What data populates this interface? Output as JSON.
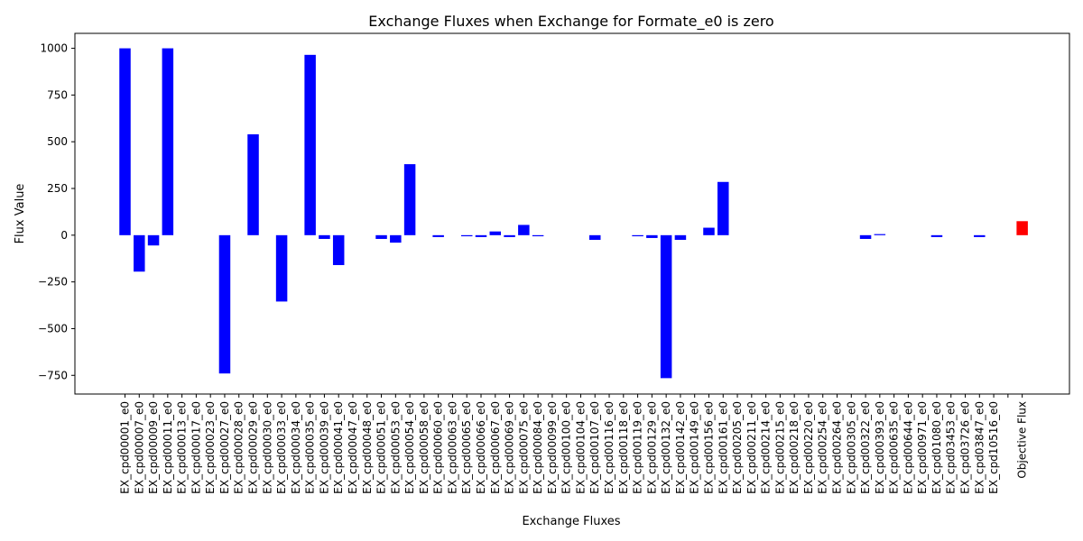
{
  "chart_data": {
    "type": "bar",
    "title": "Exchange Fluxes when Exchange for Formate_e0 is zero",
    "xlabel": "Exchange Fluxes",
    "ylabel": "Flux Value",
    "ylim": [
      -850,
      1080
    ],
    "yticks": [
      -750,
      -500,
      -250,
      0,
      250,
      500,
      750,
      1000
    ],
    "grid": false,
    "categories": [
      "EX_cpd00001_e0",
      "EX_cpd00007_e0",
      "EX_cpd00009_e0",
      "EX_cpd00011_e0",
      "EX_cpd00013_e0",
      "EX_cpd00017_e0",
      "EX_cpd00023_e0",
      "EX_cpd00027_e0",
      "EX_cpd00028_e0",
      "EX_cpd00029_e0",
      "EX_cpd00030_e0",
      "EX_cpd00033_e0",
      "EX_cpd00034_e0",
      "EX_cpd00035_e0",
      "EX_cpd00039_e0",
      "EX_cpd00041_e0",
      "EX_cpd00047_e0",
      "EX_cpd00048_e0",
      "EX_cpd00051_e0",
      "EX_cpd00053_e0",
      "EX_cpd00054_e0",
      "EX_cpd00058_e0",
      "EX_cpd00060_e0",
      "EX_cpd00063_e0",
      "EX_cpd00065_e0",
      "EX_cpd00066_e0",
      "EX_cpd00067_e0",
      "EX_cpd00069_e0",
      "EX_cpd00075_e0",
      "EX_cpd00084_e0",
      "EX_cpd00099_e0",
      "EX_cpd00100_e0",
      "EX_cpd00104_e0",
      "EX_cpd00107_e0",
      "EX_cpd00116_e0",
      "EX_cpd00118_e0",
      "EX_cpd00119_e0",
      "EX_cpd00129_e0",
      "EX_cpd00132_e0",
      "EX_cpd00142_e0",
      "EX_cpd00149_e0",
      "EX_cpd00156_e0",
      "EX_cpd00161_e0",
      "EX_cpd00205_e0",
      "EX_cpd00211_e0",
      "EX_cpd00214_e0",
      "EX_cpd00215_e0",
      "EX_cpd00218_e0",
      "EX_cpd00220_e0",
      "EX_cpd00254_e0",
      "EX_cpd00264_e0",
      "EX_cpd00305_e0",
      "EX_cpd00322_e0",
      "EX_cpd00393_e0",
      "EX_cpd00635_e0",
      "EX_cpd00644_e0",
      "EX_cpd00971_e0",
      "EX_cpd01080_e0",
      "EX_cpd03453_e0",
      "EX_cpd03726_e0",
      "EX_cpd03847_e0",
      "EX_cpd10516_e0",
      "",
      "Objective Flux"
    ],
    "values": [
      1000,
      -195,
      -55,
      1000,
      0,
      0,
      0,
      -740,
      0,
      540,
      0,
      -355,
      0,
      965,
      -20,
      -160,
      0,
      0,
      -20,
      -40,
      380,
      0,
      -10,
      0,
      -5,
      -10,
      20,
      -10,
      55,
      -5,
      0,
      0,
      0,
      -25,
      0,
      0,
      -5,
      -15,
      -765,
      -25,
      0,
      40,
      285,
      0,
      0,
      0,
      0,
      0,
      0,
      0,
      0,
      0,
      -20,
      5,
      0,
      0,
      0,
      -10,
      0,
      0,
      -10,
      0,
      0,
      75
    ],
    "colors": {
      "exchange": "#0000ff",
      "objective": "#ff0000"
    }
  }
}
